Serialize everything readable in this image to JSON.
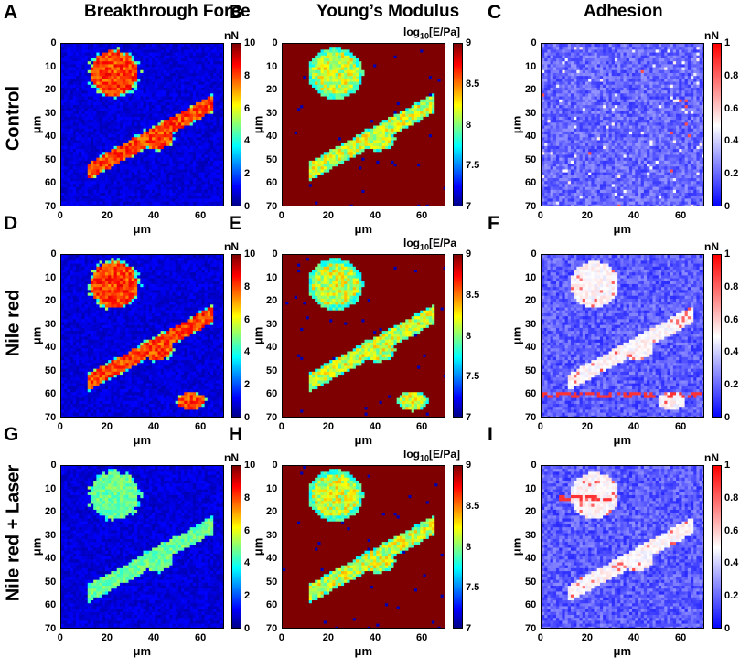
{
  "column_titles": [
    "Breakthrough Force",
    "Young’s Modulus",
    "Adhesion"
  ],
  "row_labels": [
    "Control",
    "Nile red",
    "Nile red + Laser"
  ],
  "colors": {
    "jet": [
      "#00007f",
      "#0000ff",
      "#007fff",
      "#00ffff",
      "#7fff7f",
      "#ffff00",
      "#ff7f00",
      "#ff0000",
      "#7f0000"
    ],
    "bwr": [
      "#0000ff",
      "#ffffff",
      "#ff0000"
    ]
  },
  "chart_data": [
    {
      "panel": "A",
      "type": "heatmap",
      "title": "Breakthrough Force",
      "row": "Control",
      "xlabel": "μm",
      "ylabel": "μm",
      "xlim": [
        0,
        70
      ],
      "ylim": [
        0,
        70
      ],
      "xticks": [
        "0",
        "20",
        "40",
        "60"
      ],
      "yticks": [
        "0",
        "10",
        "20",
        "30",
        "40",
        "50",
        "60",
        "70"
      ],
      "colorbar": {
        "unit": "nN",
        "min": 0,
        "max": 10,
        "ticks": [
          "0",
          "2",
          "4",
          "6",
          "8",
          "10"
        ],
        "colormap": "jet"
      }
    },
    {
      "panel": "B",
      "type": "heatmap",
      "title": "Young’s Modulus",
      "row": "Control",
      "xlabel": "μm",
      "ylabel": "μm",
      "xlim": [
        0,
        70
      ],
      "ylim": [
        0,
        70
      ],
      "xticks": [
        "0",
        "20",
        "40",
        "60"
      ],
      "yticks": [
        "0",
        "10",
        "20",
        "30",
        "40",
        "50",
        "60",
        "70"
      ],
      "colorbar": {
        "unit_prefix": "log",
        "unit_sub": "10",
        "unit_suffix": "[E/Pa]",
        "min": 7,
        "max": 9,
        "ticks": [
          "7",
          "7.5",
          "8",
          "8.5",
          "9"
        ],
        "colormap": "jet"
      }
    },
    {
      "panel": "C",
      "type": "heatmap",
      "title": "Adhesion",
      "row": "Control",
      "xlabel": "μm",
      "ylabel": "μm",
      "xlim": [
        0,
        70
      ],
      "ylim": [
        0,
        70
      ],
      "xticks": [
        "0",
        "20",
        "40",
        "60"
      ],
      "yticks": [
        "0",
        "10",
        "20",
        "30",
        "40",
        "50",
        "60",
        "70"
      ],
      "colorbar": {
        "unit": "nN",
        "min": 0,
        "max": 1,
        "ticks": [
          "0",
          "0.2",
          "0.4",
          "0.6",
          "0.8",
          "1"
        ],
        "colormap": "bwr"
      }
    },
    {
      "panel": "D",
      "type": "heatmap",
      "row": "Nile red",
      "xlabel": "μm",
      "ylabel": "μm",
      "xlim": [
        0,
        70
      ],
      "ylim": [
        0,
        70
      ],
      "xticks": [
        "0",
        "20",
        "40",
        "60"
      ],
      "yticks": [
        "0",
        "10",
        "20",
        "30",
        "40",
        "50",
        "60",
        "70"
      ],
      "colorbar": {
        "unit": "nN",
        "min": 0,
        "max": 10,
        "ticks": [
          "0",
          "2",
          "4",
          "6",
          "8",
          "10"
        ],
        "colormap": "jet"
      }
    },
    {
      "panel": "E",
      "type": "heatmap",
      "row": "Nile red",
      "xlabel": "μm",
      "ylabel": "μm",
      "xlim": [
        0,
        70
      ],
      "ylim": [
        0,
        70
      ],
      "xticks": [
        "0",
        "20",
        "40",
        "60"
      ],
      "yticks": [
        "0",
        "10",
        "20",
        "30",
        "40",
        "50",
        "60",
        "70"
      ],
      "colorbar": {
        "unit_prefix": "log",
        "unit_sub": "10",
        "unit_suffix": "[E/Pa",
        "min": 7,
        "max": 9,
        "ticks": [
          "7",
          "7.5",
          "8",
          "8.5",
          "9"
        ],
        "colormap": "jet"
      }
    },
    {
      "panel": "F",
      "type": "heatmap",
      "row": "Nile red",
      "xlabel": "μm",
      "ylabel": "μm",
      "xlim": [
        0,
        70
      ],
      "ylim": [
        0,
        70
      ],
      "xticks": [
        "0",
        "20",
        "40",
        "60"
      ],
      "yticks": [
        "0",
        "10",
        "20",
        "30",
        "40",
        "50",
        "60",
        "70"
      ],
      "colorbar": {
        "unit": "nN",
        "min": 0,
        "max": 1,
        "ticks": [
          "0",
          "0.2",
          "0.4",
          "0.6",
          "0.8",
          "1"
        ],
        "colormap": "bwr"
      }
    },
    {
      "panel": "G",
      "type": "heatmap",
      "row": "Nile red + Laser",
      "xlabel": "μm",
      "ylabel": "μm",
      "xlim": [
        0,
        70
      ],
      "ylim": [
        0,
        70
      ],
      "xticks": [
        "0",
        "20",
        "40",
        "60"
      ],
      "yticks": [
        "0",
        "10",
        "20",
        "30",
        "40",
        "50",
        "60",
        "70"
      ],
      "colorbar": {
        "unit": "nN",
        "min": 0,
        "max": 10,
        "ticks": [
          "0",
          "2",
          "4",
          "6",
          "8",
          "10"
        ],
        "colormap": "jet"
      }
    },
    {
      "panel": "H",
      "type": "heatmap",
      "row": "Nile red + Laser",
      "xlabel": "μm",
      "ylabel": "μm",
      "xlim": [
        0,
        70
      ],
      "ylim": [
        0,
        70
      ],
      "xticks": [
        "0",
        "20",
        "40",
        "60"
      ],
      "yticks": [
        "0",
        "10",
        "20",
        "30",
        "40",
        "50",
        "60",
        "70"
      ],
      "colorbar": {
        "unit_prefix": "log",
        "unit_sub": "10",
        "unit_suffix": "[E/Pa]",
        "min": 7,
        "max": 9,
        "ticks": [
          "7",
          "7.5",
          "8",
          "8.5",
          "9"
        ],
        "colormap": "jet"
      }
    },
    {
      "panel": "I",
      "type": "heatmap",
      "row": "Nile red + Laser",
      "xlabel": "μm",
      "ylabel": "μm",
      "xlim": [
        0,
        70
      ],
      "ylim": [
        0,
        70
      ],
      "xticks": [
        "0",
        "20",
        "40",
        "60"
      ],
      "yticks": [
        "0",
        "10",
        "20",
        "30",
        "40",
        "50",
        "60",
        "70"
      ],
      "colorbar": {
        "unit": "nN",
        "min": 0,
        "max": 1,
        "ticks": [
          "0",
          "0.2",
          "0.4",
          "0.6",
          "0.8",
          "1"
        ],
        "colormap": "bwr"
      }
    }
  ]
}
